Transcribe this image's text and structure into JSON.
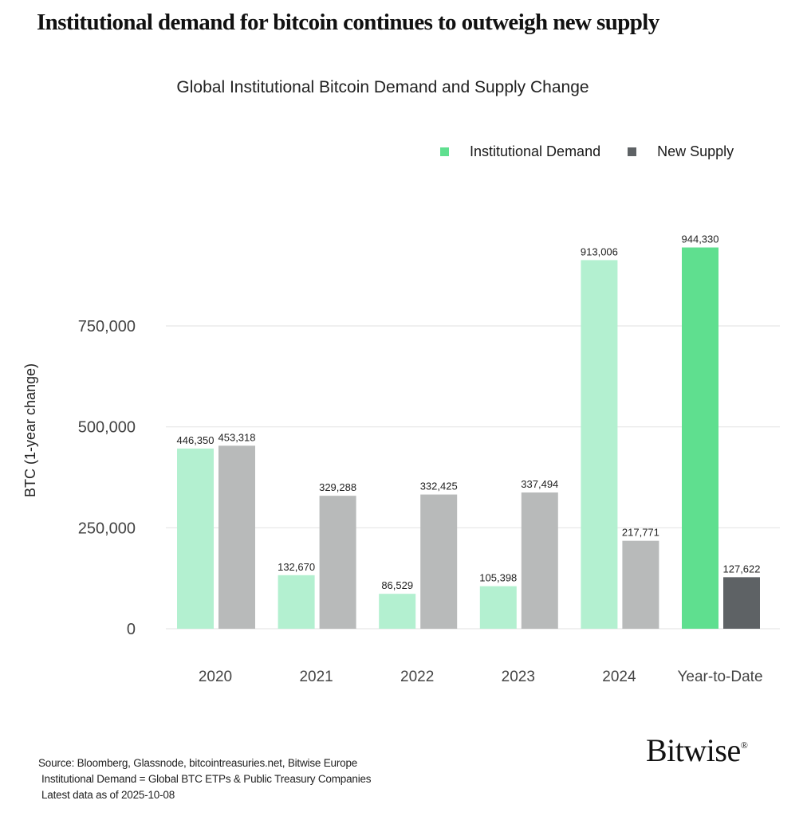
{
  "headline": "Institutional demand for bitcoin continues to outweigh new supply",
  "footer": {
    "source": "Source: Bloomberg, Glassnode, bitcointreasuries.net, Bitwise Europe",
    "definition": "Institutional Demand = Global BTC ETPs & Public Treasury Companies",
    "date": "Latest data as of 2025-10-08"
  },
  "logo": {
    "text": "Bitwise",
    "mark": "®"
  },
  "chart_data": {
    "type": "bar",
    "title": "Global Institutional Bitcoin Demand and Supply Change",
    "xlabel": "",
    "ylabel": "BTC (1-year change)",
    "ylim": [
      0,
      1000000
    ],
    "yticks": [
      0,
      250000,
      500000,
      750000
    ],
    "ytick_labels": [
      "0",
      "250,000",
      "500,000",
      "750,000"
    ],
    "grid": true,
    "legend_position": "top-right",
    "categories": [
      "2020",
      "2021",
      "2022",
      "2023",
      "2024",
      "Year-to-Date"
    ],
    "series": [
      {
        "name": "Institutional Demand",
        "color": "#b3f0d0",
        "highlight_color": "#5fdf8f",
        "values": [
          446350,
          132670,
          86529,
          105398,
          913006,
          944330
        ],
        "labels": [
          "446,350",
          "132,670",
          "86,529",
          "105,398",
          "913,006",
          "944,330"
        ]
      },
      {
        "name": "New Supply",
        "color": "#b8baba",
        "highlight_color": "#5e6265",
        "values": [
          453318,
          329288,
          332425,
          337494,
          217771,
          127622
        ],
        "labels": [
          "453,318",
          "329,288",
          "332,425",
          "337,494",
          "217,771",
          "127,622"
        ]
      }
    ]
  }
}
